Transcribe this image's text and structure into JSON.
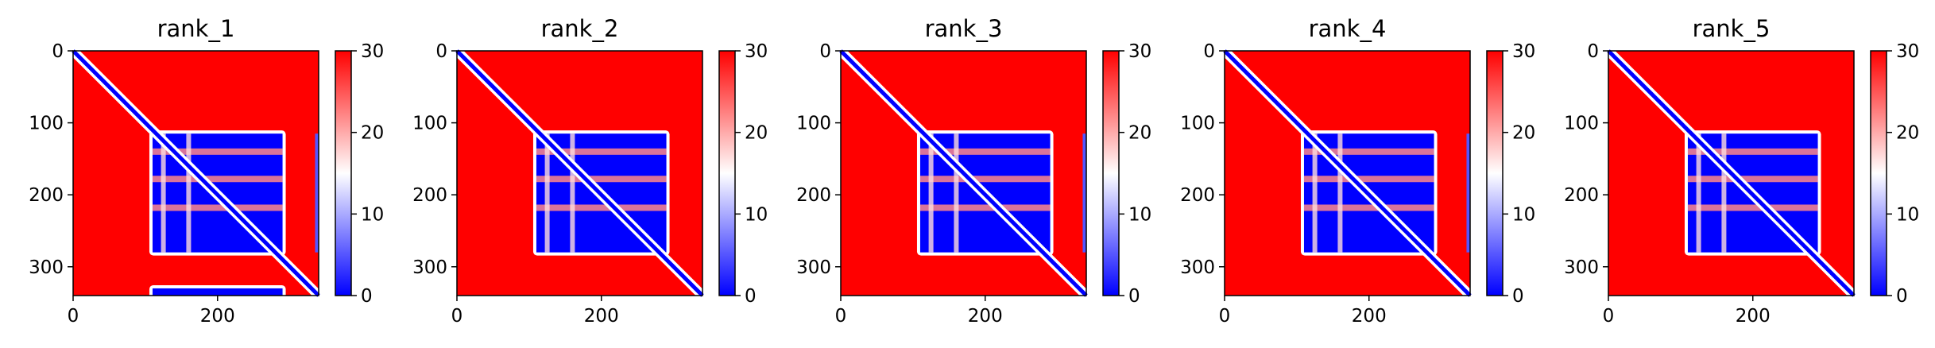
{
  "chart_data": [
    {
      "type": "heatmap",
      "title": "rank_1",
      "x_ticks": [
        0,
        200
      ],
      "y_ticks": [
        0,
        100,
        200,
        300
      ],
      "xlim": [
        0,
        340
      ],
      "ylim": [
        340,
        0
      ],
      "colorbar": {
        "range": [
          0,
          30
        ],
        "ticks": [
          0,
          10,
          20,
          30
        ],
        "colors": [
          "#0000ff",
          "#ffffff",
          "#ff0000"
        ]
      },
      "matrix_size": 340,
      "low_blocks": [
        {
          "rows": [
            115,
            280
          ],
          "cols": [
            110,
            290
          ]
        },
        {
          "rows": [
            330,
            340
          ],
          "cols": [
            110,
            290
          ]
        }
      ],
      "low_bands": [
        {
          "rows": [
            115,
            280
          ],
          "cols": [
            335,
            340
          ]
        }
      ]
    },
    {
      "type": "heatmap",
      "title": "rank_2",
      "x_ticks": [
        0,
        200
      ],
      "y_ticks": [
        0,
        100,
        200,
        300
      ],
      "xlim": [
        0,
        340
      ],
      "ylim": [
        340,
        0
      ],
      "colorbar": {
        "range": [
          0,
          30
        ],
        "ticks": [
          0,
          10,
          20,
          30
        ],
        "colors": [
          "#0000ff",
          "#ffffff",
          "#ff0000"
        ]
      },
      "matrix_size": 340,
      "low_blocks": [
        {
          "rows": [
            115,
            280
          ],
          "cols": [
            110,
            290
          ]
        }
      ],
      "low_bands": []
    },
    {
      "type": "heatmap",
      "title": "rank_3",
      "x_ticks": [
        0,
        200
      ],
      "y_ticks": [
        0,
        100,
        200,
        300
      ],
      "xlim": [
        0,
        340
      ],
      "ylim": [
        340,
        0
      ],
      "colorbar": {
        "range": [
          0,
          30
        ],
        "ticks": [
          0,
          10,
          20,
          30
        ],
        "colors": [
          "#0000ff",
          "#ffffff",
          "#ff0000"
        ]
      },
      "matrix_size": 340,
      "low_blocks": [
        {
          "rows": [
            115,
            280
          ],
          "cols": [
            110,
            290
          ]
        }
      ],
      "low_bands": [
        {
          "rows": [
            115,
            280
          ],
          "cols": [
            335,
            340
          ]
        }
      ]
    },
    {
      "type": "heatmap",
      "title": "rank_4",
      "x_ticks": [
        0,
        200
      ],
      "y_ticks": [
        0,
        100,
        200,
        300
      ],
      "xlim": [
        0,
        340
      ],
      "ylim": [
        340,
        0
      ],
      "colorbar": {
        "range": [
          0,
          30
        ],
        "ticks": [
          0,
          10,
          20,
          30
        ],
        "colors": [
          "#0000ff",
          "#ffffff",
          "#ff0000"
        ]
      },
      "matrix_size": 340,
      "low_blocks": [
        {
          "rows": [
            115,
            280
          ],
          "cols": [
            110,
            290
          ]
        }
      ],
      "low_bands": [
        {
          "rows": [
            115,
            280
          ],
          "cols": [
            335,
            340
          ]
        }
      ]
    },
    {
      "type": "heatmap",
      "title": "rank_5",
      "x_ticks": [
        0,
        200
      ],
      "y_ticks": [
        0,
        100,
        200,
        300
      ],
      "xlim": [
        0,
        340
      ],
      "ylim": [
        340,
        0
      ],
      "colorbar": {
        "range": [
          0,
          30
        ],
        "ticks": [
          0,
          10,
          20,
          30
        ],
        "colors": [
          "#0000ff",
          "#ffffff",
          "#ff0000"
        ]
      },
      "matrix_size": 340,
      "low_blocks": [
        {
          "rows": [
            115,
            280
          ],
          "cols": [
            110,
            290
          ]
        }
      ],
      "low_bands": []
    }
  ]
}
